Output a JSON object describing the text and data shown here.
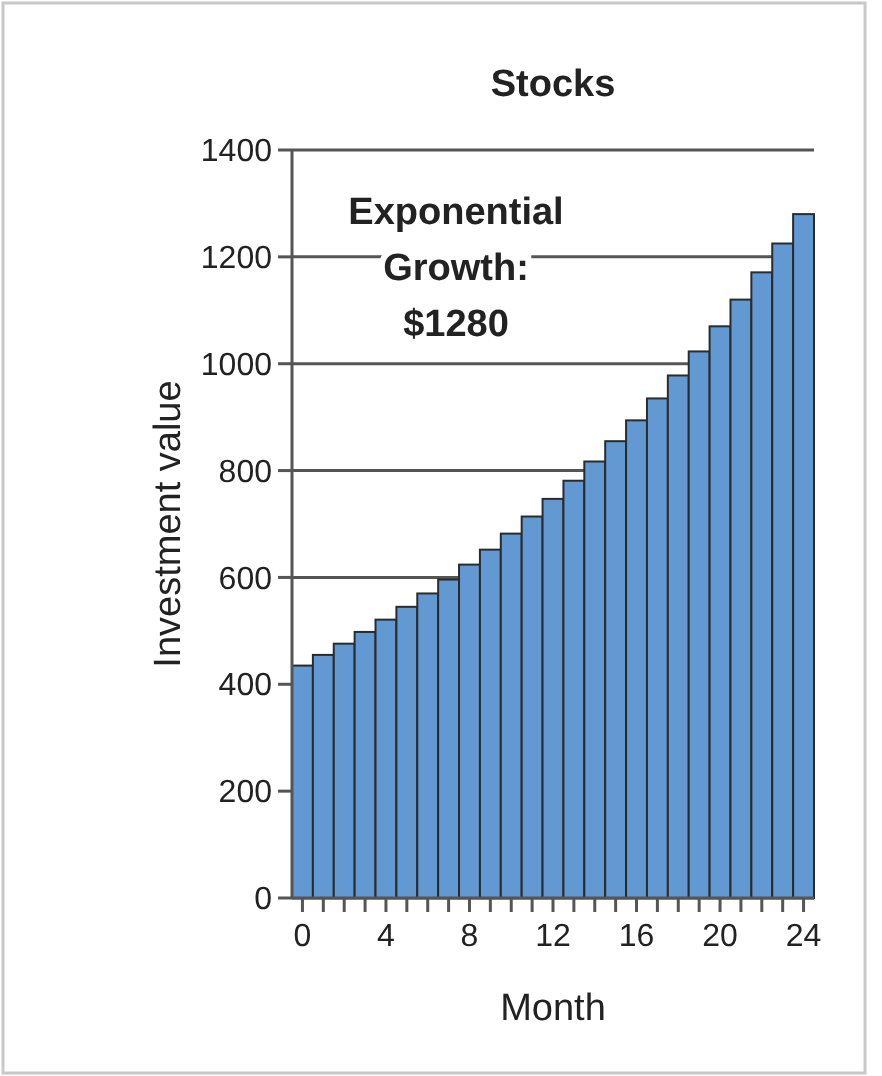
{
  "chart_data": {
    "type": "bar",
    "title": "Stocks",
    "xlabel": "Month",
    "ylabel": "Investment value",
    "x": [
      0,
      1,
      2,
      3,
      4,
      5,
      6,
      7,
      8,
      9,
      10,
      11,
      12,
      13,
      14,
      15,
      16,
      17,
      18,
      19,
      20,
      21,
      22,
      23,
      24
    ],
    "values": [
      435,
      455,
      476,
      498,
      521,
      545,
      570,
      596,
      624,
      652,
      682,
      714,
      747,
      781,
      817,
      855,
      894,
      935,
      978,
      1023,
      1070,
      1120,
      1171,
      1225,
      1280
    ],
    "color": "#6399d2",
    "xlim": [
      -0.5,
      24.5
    ],
    "xticks": [
      0,
      {
        "value": 1,
        "label": null
      },
      {
        "value": 2,
        "label": null
      },
      {
        "value": 3,
        "label": null
      },
      4,
      {
        "value": 5,
        "label": null
      },
      {
        "value": 6,
        "label": null
      },
      {
        "value": 7,
        "label": null
      },
      8,
      {
        "value": 9,
        "label": null
      },
      {
        "value": 10,
        "label": null
      },
      {
        "value": 11,
        "label": null
      },
      12,
      {
        "value": 13,
        "label": null
      },
      {
        "value": 14,
        "label": null
      },
      {
        "value": 15,
        "label": null
      },
      16,
      {
        "value": 17,
        "label": null
      },
      {
        "value": 18,
        "label": null
      },
      {
        "value": 19,
        "label": null
      },
      20,
      {
        "value": 21,
        "label": null
      },
      {
        "value": 22,
        "label": null
      },
      {
        "value": 23,
        "label": null
      },
      24
    ],
    "ylim": [
      0,
      1400
    ],
    "yticks": [
      0,
      200,
      400,
      600,
      800,
      1000,
      1200,
      1400
    ],
    "grid": "y",
    "annotations": [
      "Exponential\nGrowth:\n$1280"
    ]
  }
}
